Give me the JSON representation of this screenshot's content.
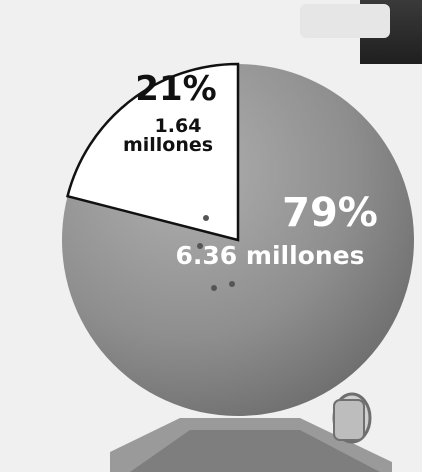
{
  "chart_data": {
    "type": "pie",
    "title": "",
    "slices": [
      {
        "percent_label": "79%",
        "value_label": "6.36 millones",
        "value": 6.36,
        "percent": 79,
        "color": "#8a8a8a"
      },
      {
        "percent_label": "21%",
        "value_label_line1": "1.64",
        "value_label_line2": "millones",
        "value": 1.64,
        "percent": 21,
        "color": "#ffffff"
      }
    ],
    "legend": "none",
    "grid": false
  }
}
